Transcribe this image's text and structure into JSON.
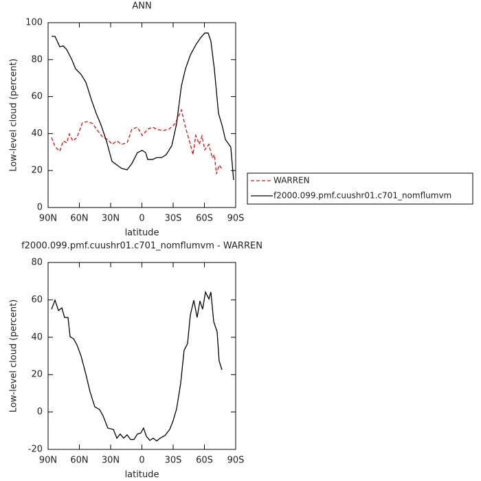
{
  "chart_data": [
    {
      "type": "line",
      "title": "ANN",
      "xlabel": "latitude",
      "ylabel": "Low-level cloud (percent)",
      "xlim": [
        90,
        -90
      ],
      "ylim": [
        0,
        100
      ],
      "xticks": [
        {
          "value": 90,
          "label": "90N"
        },
        {
          "value": 60,
          "label": "60N"
        },
        {
          "value": 30,
          "label": "30N"
        },
        0,
        {
          "value": -30,
          "label": "30S"
        },
        {
          "value": -60,
          "label": "60S"
        },
        {
          "value": -90,
          "label": "90S"
        }
      ],
      "yticks": [
        0,
        20,
        40,
        60,
        80,
        100
      ],
      "legend": "right",
      "series": [
        {
          "name": "WARREN",
          "color": "#ff0000",
          "style": "dashed",
          "x": [
            86.7,
            83.4,
            78.8,
            75.5,
            72.2,
            69.6,
            66.3,
            62.3,
            57,
            52.4,
            47.2,
            42.5,
            37.3,
            32.7,
            28.7,
            24,
            19.5,
            14.2,
            9.6,
            4.3,
            -0.3,
            -5.6,
            -10.2,
            -14.2,
            -20,
            -26,
            -31.9,
            -37.9,
            -41.8,
            -46.5,
            -49,
            -51.7,
            -55,
            -57.7,
            -60.3,
            -64.3,
            -67.5,
            -69.5,
            -71.5,
            -74.1,
            -77.4
          ],
          "values": [
            37.9,
            33,
            30.5,
            36,
            35,
            39.8,
            36,
            37.9,
            46,
            46.5,
            45.4,
            41.6,
            37.9,
            36.8,
            34.2,
            36,
            34.2,
            35,
            42.4,
            43.5,
            39,
            42.4,
            43.5,
            42.4,
            41.6,
            42.4,
            45.4,
            52.8,
            43.5,
            34.2,
            28.6,
            39,
            34.2,
            38.7,
            31.2,
            34.2,
            26.8,
            28.6,
            18.2,
            23,
            20.4
          ]
        },
        {
          "name": "f2000.099.pmf.cuushr01.c701_nomflumvm",
          "color": "#000000",
          "style": "solid",
          "x": [
            86.7,
            83.4,
            78.8,
            75.5,
            72.2,
            66.9,
            63.6,
            58.4,
            53.7,
            48.5,
            43.9,
            39.2,
            34,
            28.7,
            24,
            19.5,
            14.2,
            9.6,
            4.3,
            -0.3,
            -3.6,
            -5.6,
            -10.2,
            -14.2,
            -18.8,
            -23.4,
            -28.7,
            -33.3,
            -37.9,
            -41.8,
            -46.5,
            -51.7,
            -56.3,
            -60.3,
            -63.6,
            -66.2,
            -69.5,
            -73.5,
            -77.4,
            -80.1,
            -83.4,
            -85.3,
            -88
          ],
          "values": [
            92.6,
            92.6,
            87,
            87.4,
            85.5,
            79.6,
            75,
            72,
            67.7,
            58.4,
            51,
            44.6,
            36,
            25,
            23,
            21.2,
            20.4,
            23.8,
            29.7,
            30.9,
            29.7,
            26,
            26,
            27,
            27,
            28.6,
            33.5,
            45.3,
            65.8,
            75,
            82.5,
            88,
            91.8,
            94.4,
            94.4,
            90,
            75,
            51,
            43.5,
            36.8,
            34.2,
            32.7,
            14.9
          ]
        }
      ]
    },
    {
      "type": "line",
      "title": "f2000.099.pmf.cuushr01.c701_nomflumvm - WARREN",
      "xlabel": "latitude",
      "ylabel": "Low-level cloud (percent)",
      "xlim": [
        90,
        -90
      ],
      "ylim": [
        -20,
        80
      ],
      "xticks": [
        {
          "value": 90,
          "label": "90N"
        },
        {
          "value": 60,
          "label": "60N"
        },
        {
          "value": 30,
          "label": "30N"
        },
        0,
        {
          "value": -30,
          "label": "30S"
        },
        {
          "value": -60,
          "label": "60S"
        },
        {
          "value": -90,
          "label": "90S"
        }
      ],
      "yticks": [
        -20,
        0,
        20,
        40,
        60,
        80
      ],
      "series": [
        {
          "color": "#000000",
          "style": "solid",
          "x": [
            86.7,
            83.4,
            80,
            76.8,
            74.2,
            70.9,
            68.9,
            65.6,
            62.3,
            58.4,
            53.7,
            49.8,
            45.2,
            40.6,
            37.3,
            32.7,
            27.4,
            24,
            20.8,
            17.5,
            14.2,
            10.9,
            7.6,
            4.3,
            1,
            -1.6,
            -4.3,
            -7.6,
            -10.9,
            -14.2,
            -17.5,
            -22.1,
            -26.7,
            -30,
            -33.3,
            -37.2,
            -40.5,
            -43.8,
            -46.5,
            -49.8,
            -53,
            -55.7,
            -58.3,
            -61,
            -64.3,
            -66.2,
            -68.9,
            -72.2,
            -74.1,
            -76.8
          ],
          "values": [
            55,
            59.8,
            54.3,
            55.7,
            50.6,
            50.6,
            40.3,
            39.2,
            35.9,
            30,
            20.1,
            10.9,
            2.8,
            1.3,
            -2,
            -8.6,
            -9.3,
            -14,
            -11.8,
            -14,
            -12.2,
            -14.7,
            -14.7,
            -11.8,
            -11.2,
            -8.6,
            -13,
            -15.2,
            -14,
            -15.5,
            -14,
            -12.6,
            -9.3,
            -4.6,
            1.7,
            15.3,
            33,
            36.6,
            52,
            59.8,
            50.6,
            59.4,
            55,
            64.2,
            60.5,
            64.2,
            48.4,
            42.9,
            27.4,
            22.6
          ]
        }
      ]
    }
  ]
}
